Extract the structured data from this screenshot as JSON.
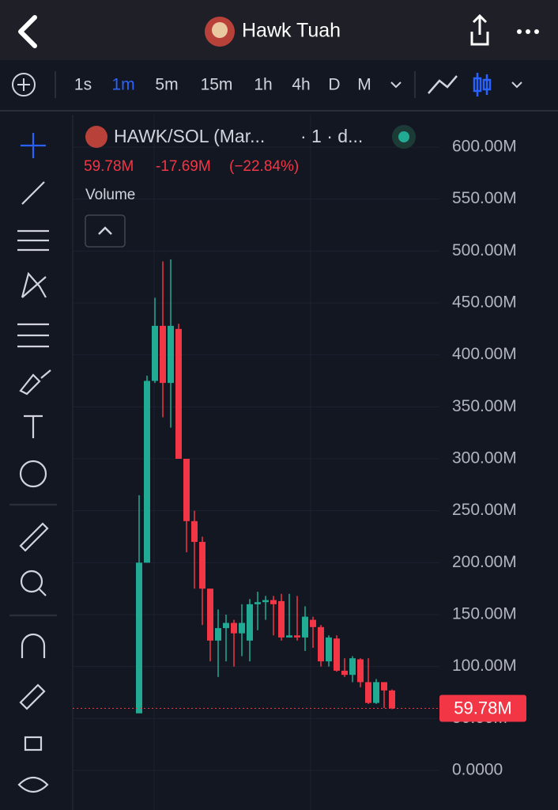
{
  "header": {
    "title": "Hawk Tuah"
  },
  "toolbar": {
    "intervals": [
      "1s",
      "1m",
      "5m",
      "15m",
      "1h",
      "4h",
      "D",
      "M"
    ],
    "active": 1
  },
  "legend": {
    "symbol": "HAWK/SOL (Mar...",
    "interval": "· 1 · d...",
    "price": "59.78M",
    "change": "-17.69M",
    "change_pct": "(−22.84%)",
    "study": "Volume"
  },
  "chart_data": {
    "type": "candlestick",
    "up_color": "#22ab94",
    "down_color": "#f23645",
    "grid": true,
    "ylim": [
      0,
      600
    ],
    "yticks": [
      {
        "value": 0,
        "label": "0.0000"
      },
      {
        "value": 50,
        "label": "50.00M"
      },
      {
        "value": 100,
        "label": "100.00M"
      },
      {
        "value": 150,
        "label": "150.00M"
      },
      {
        "value": 200,
        "label": "200.00M"
      },
      {
        "value": 250,
        "label": "250.00M"
      },
      {
        "value": 300,
        "label": "300.00M"
      },
      {
        "value": 350,
        "label": "350.00M"
      },
      {
        "value": 400,
        "label": "400.00M"
      },
      {
        "value": 450,
        "label": "450.00M"
      },
      {
        "value": 500,
        "label": "500.00M"
      },
      {
        "value": 550,
        "label": "550.00M"
      },
      {
        "value": 600,
        "label": "600.00M"
      }
    ],
    "open": [
      55,
      200,
      375,
      428,
      373,
      425,
      300,
      240,
      220,
      175,
      125,
      137,
      142,
      132,
      125,
      160,
      162,
      164,
      163,
      128,
      130,
      128,
      145,
      138,
      105,
      127,
      96,
      92,
      107,
      85,
      65,
      85,
      77
    ],
    "high": [
      265,
      380,
      455,
      490,
      492,
      430,
      300,
      250,
      225,
      175,
      155,
      150,
      145,
      160,
      165,
      172,
      168,
      168,
      170,
      170,
      168,
      158,
      148,
      140,
      130,
      130,
      108,
      110,
      108,
      108,
      88,
      85,
      78
    ],
    "low": [
      55,
      200,
      373,
      340,
      330,
      300,
      210,
      175,
      140,
      105,
      90,
      105,
      100,
      110,
      105,
      135,
      145,
      130,
      125,
      128,
      125,
      115,
      118,
      100,
      100,
      95,
      90,
      85,
      80,
      64,
      64,
      60,
      59
    ],
    "close": [
      200,
      375,
      428,
      373,
      428,
      300,
      240,
      220,
      175,
      125,
      137,
      142,
      132,
      142,
      160,
      162,
      164,
      160,
      128,
      130,
      128,
      148,
      138,
      105,
      128,
      96,
      92,
      108,
      85,
      65,
      85,
      77,
      59.78
    ]
  }
}
